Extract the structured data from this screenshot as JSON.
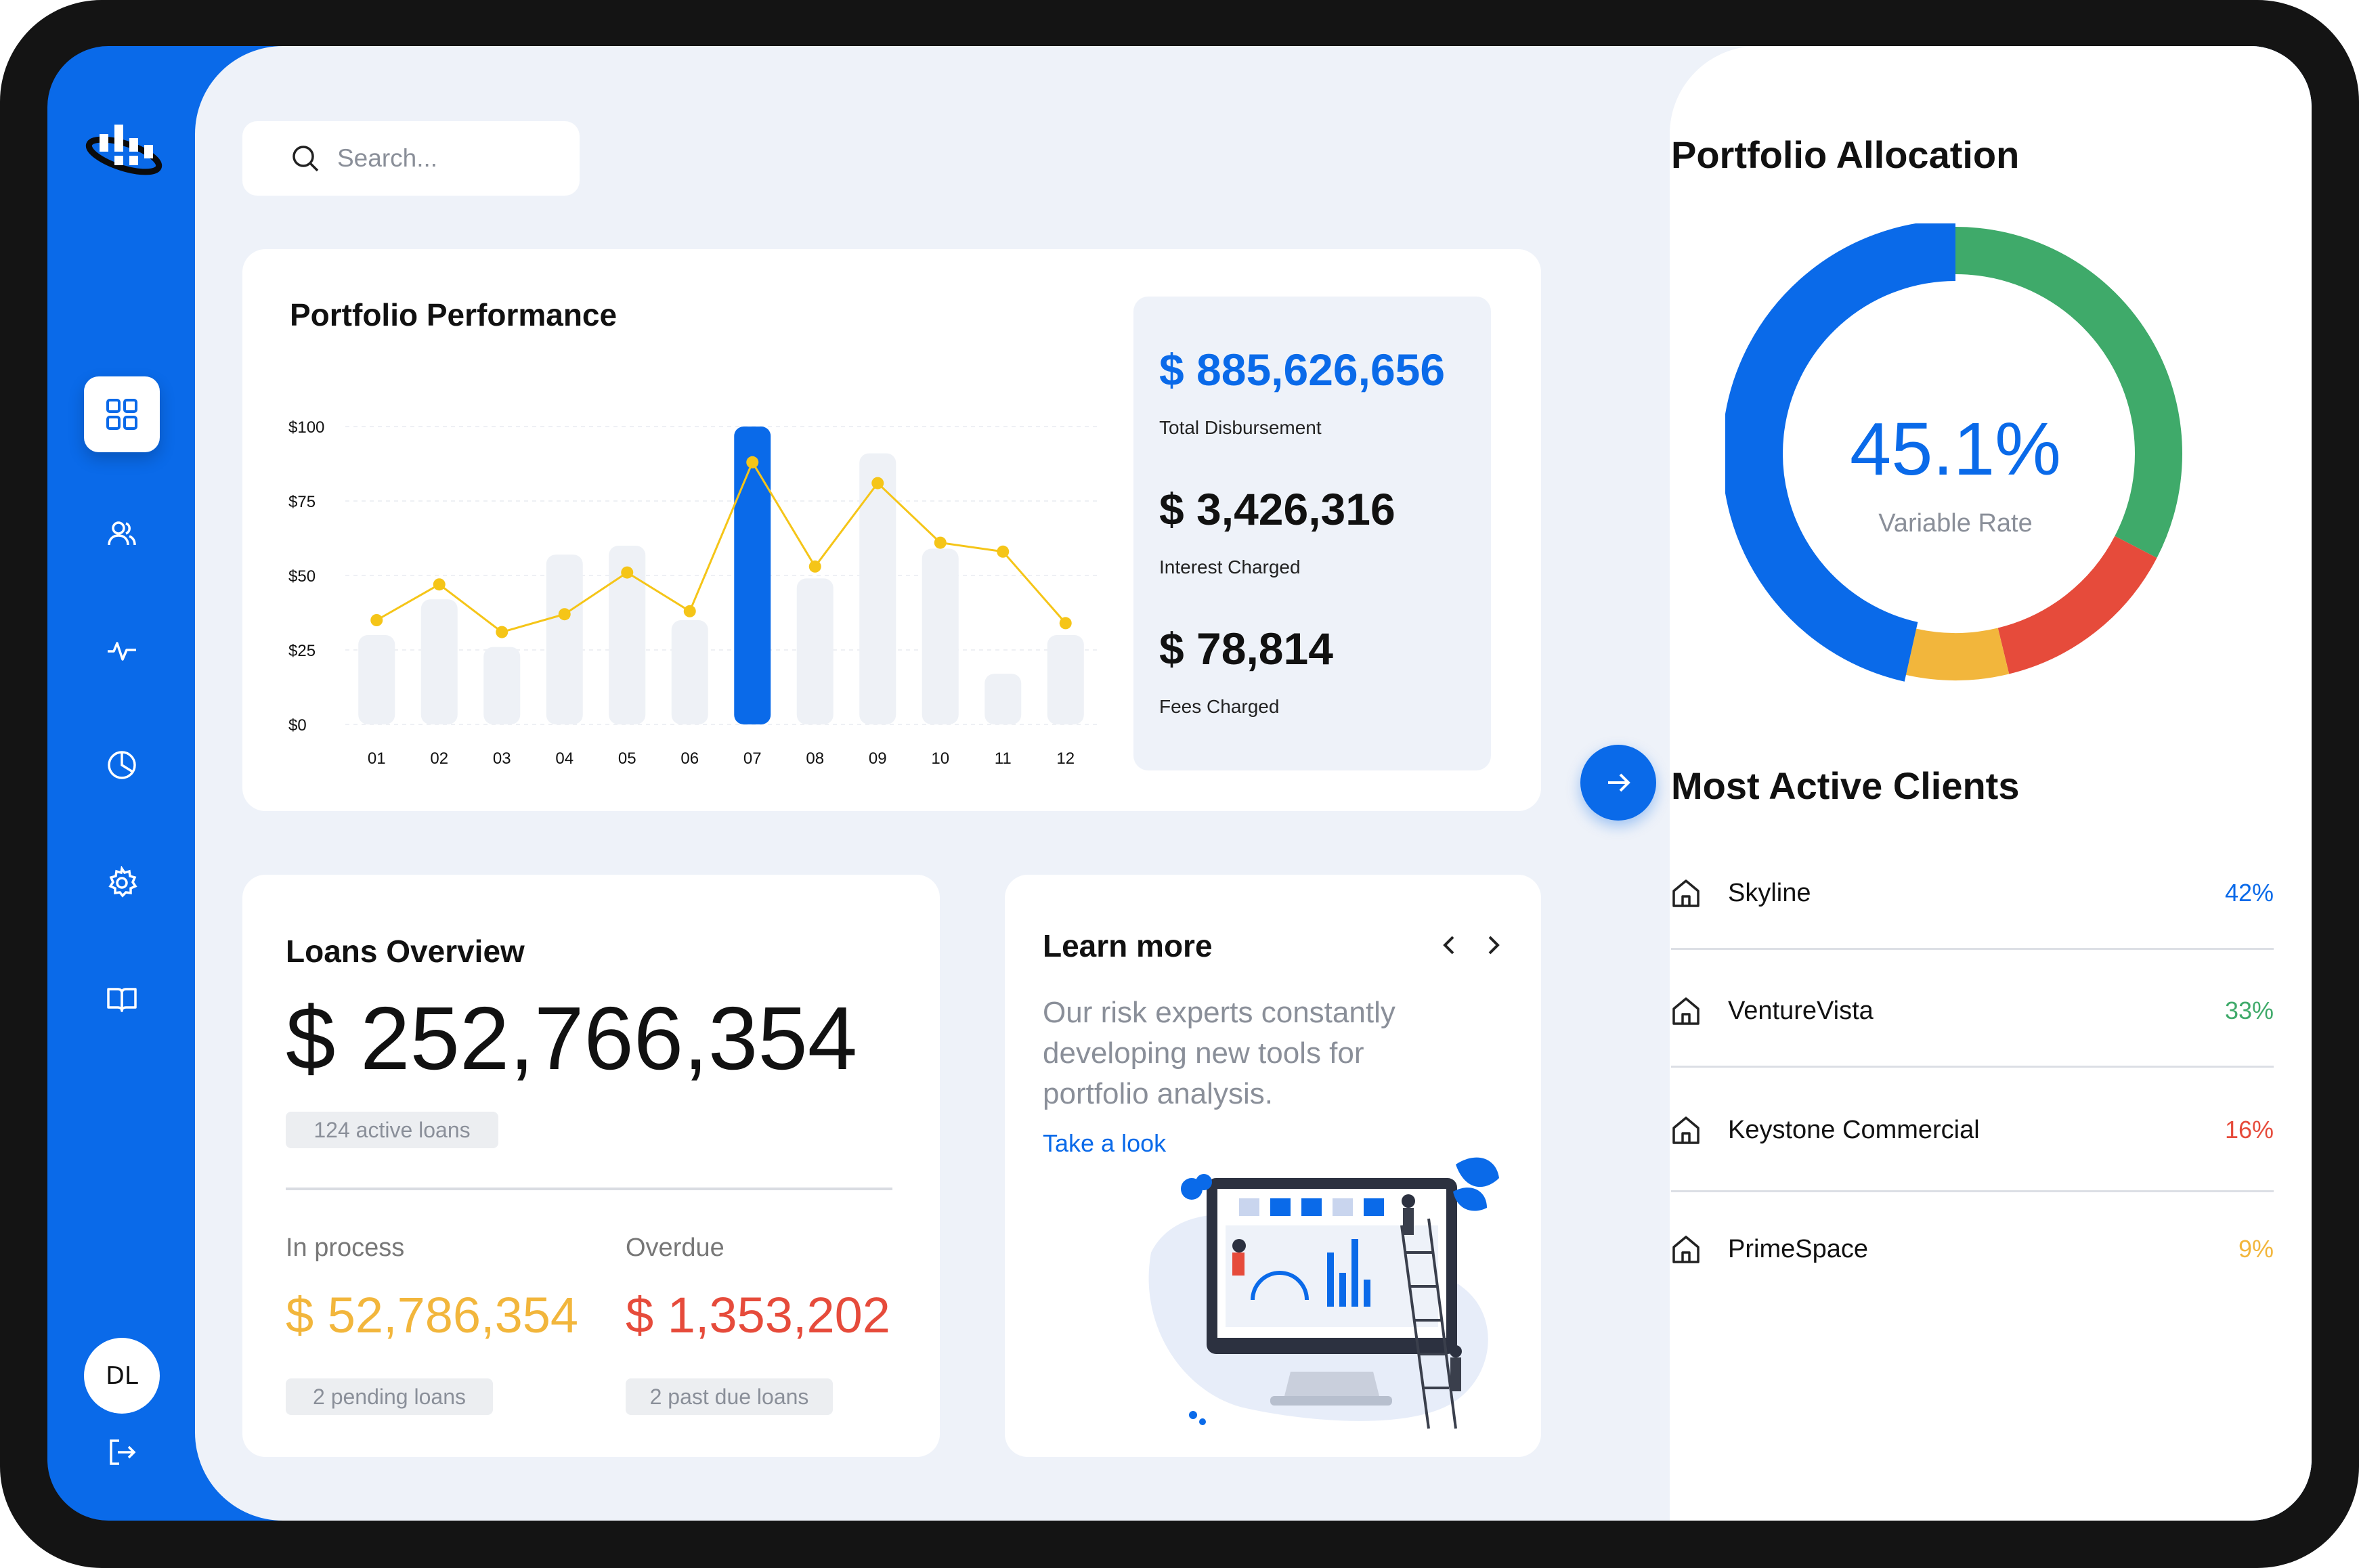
{
  "search": {
    "placeholder": "Search..."
  },
  "user": {
    "initials": "DL"
  },
  "colors": {
    "brand": "#0a6ae9",
    "green": "#3faa6a",
    "red": "#e64b3b",
    "yellow": "#f2b63c"
  },
  "performance": {
    "title": "Portfolio Performance",
    "total_disbursement": "$ 885,626,656",
    "total_disbursement_label": "Total Disbursement",
    "interest_charged": "$ 3,426,316",
    "interest_charged_label": "Interest Charged",
    "fees_charged": "$ 78,814",
    "fees_charged_label": "Fees Charged"
  },
  "chart_data": {
    "type": "bar",
    "categories": [
      "01",
      "02",
      "03",
      "04",
      "05",
      "06",
      "07",
      "08",
      "09",
      "10",
      "11",
      "12"
    ],
    "series": [
      {
        "type": "bar",
        "values": [
          30,
          42,
          26,
          57,
          60,
          35,
          100,
          49,
          91,
          59,
          17,
          30
        ],
        "highlight_index": 6
      },
      {
        "type": "line",
        "values": [
          35,
          47,
          31,
          37,
          51,
          38,
          88,
          53,
          81,
          61,
          58,
          34
        ]
      }
    ],
    "yticks": [
      "$100",
      "$75",
      "$50",
      "$25",
      "$0"
    ],
    "ylim": [
      0,
      100
    ],
    "grid": true
  },
  "loans": {
    "title": "Loans Overview",
    "total": "$ 252,766,354",
    "active_loans": "124 active loans",
    "in_process_label": "In process",
    "in_process_value": "$ 52,786,354",
    "pending": "2 pending loans",
    "overdue_label": "Overdue",
    "overdue_value": "$ 1,353,202",
    "past_due": "2 past due loans"
  },
  "learn": {
    "title": "Learn more",
    "text": "Our risk experts constantly developing new tools for portfolio analysis.",
    "link": "Take a look"
  },
  "allocation": {
    "title": "Portfolio Allocation",
    "percent": "45.1%",
    "label": "Variable Rate",
    "segments": [
      {
        "color": "#3faa6a",
        "value": 0.326
      },
      {
        "color": "#e64b3b",
        "value": 0.136
      },
      {
        "color": "#f2b63c",
        "value": 0.073
      },
      {
        "color": "#0a6ae9",
        "value": 0.465
      }
    ]
  },
  "clients": {
    "title": "Most Active Clients",
    "items": [
      {
        "name": "Skyline",
        "percent": "42%",
        "color": "#0a6ae9"
      },
      {
        "name": "VentureVista",
        "percent": "33%",
        "color": "#3faa6a"
      },
      {
        "name": "Keystone Commercial",
        "percent": "16%",
        "color": "#e64b3b"
      },
      {
        "name": "PrimeSpace",
        "percent": "9%",
        "color": "#f2b63c"
      }
    ]
  }
}
